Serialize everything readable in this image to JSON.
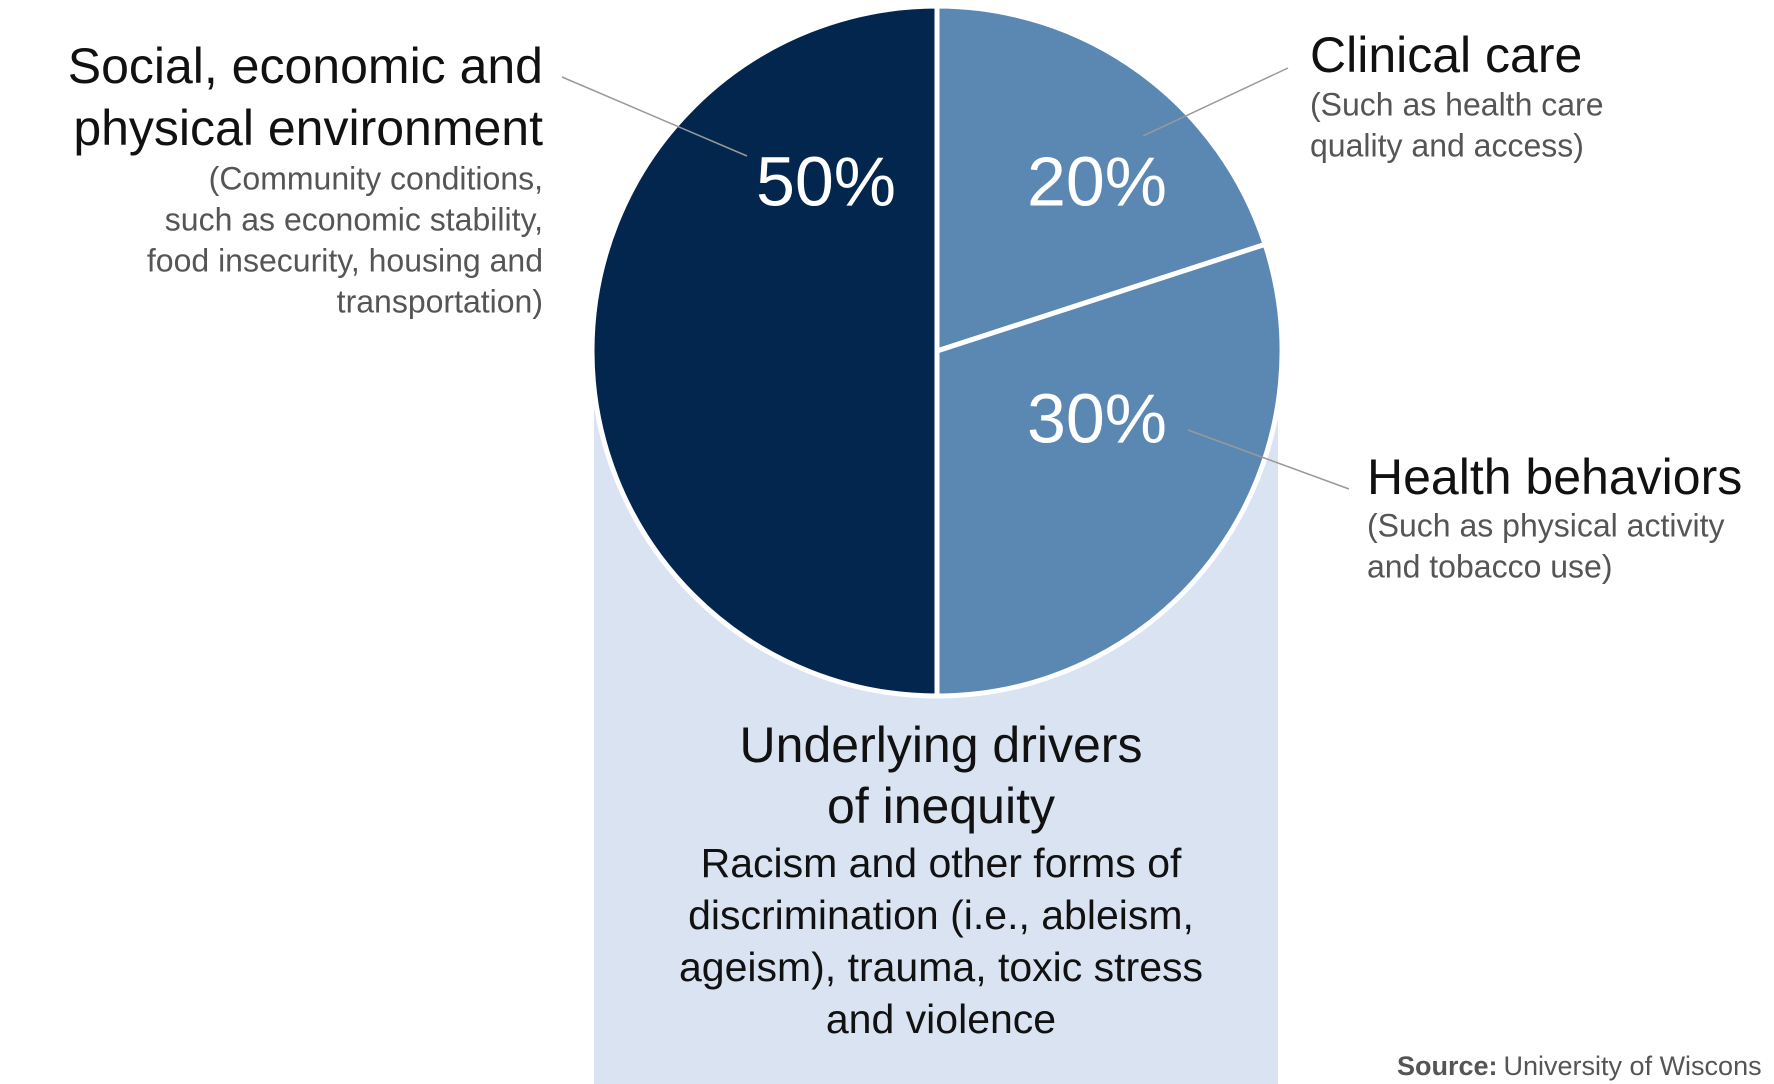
{
  "chart_data": {
    "type": "pie",
    "categories": [
      [
        "Social, economic and",
        "physical environment"
      ],
      [
        "Clinical care"
      ],
      [
        "Health behaviors"
      ]
    ],
    "descriptions": [
      [
        "(Community conditions,",
        "such as economic stability,",
        "food insecurity, housing and",
        "transportation)"
      ],
      [
        "(Such as health care",
        "quality and access)"
      ],
      [
        "(Such as physical activity",
        "and tobacco use)"
      ]
    ],
    "values": [
      50,
      20,
      30
    ],
    "value_labels": [
      "50%",
      "20%",
      "30%"
    ],
    "colors": [
      "#03264f",
      "#5b87b3",
      "#5b87b3"
    ],
    "annotation": {
      "title": [
        "Underlying drivers",
        "of inequity"
      ],
      "lines": [
        "Racism and other forms of",
        "discrimination (i.e., ableism,",
        "ageism), trauma, toxic stress",
        "and violence"
      ]
    },
    "source": {
      "label": "Source:",
      "text": "University of Wiscons"
    }
  }
}
